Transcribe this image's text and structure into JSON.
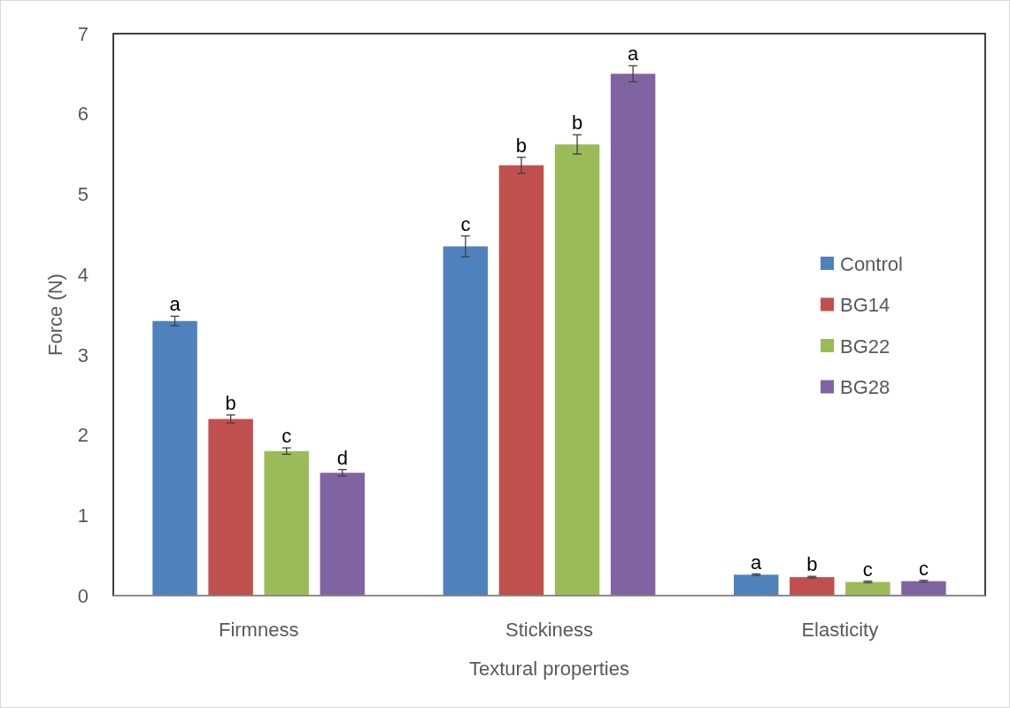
{
  "chart_data": {
    "type": "bar",
    "xlabel": "Textural properties",
    "ylabel": "Force (N)",
    "categories": [
      "Firmness",
      "Stickiness",
      "Elasticity"
    ],
    "ylim": [
      0,
      7
    ],
    "yticks": [
      0,
      1,
      2,
      3,
      4,
      5,
      6,
      7
    ],
    "grid": false,
    "legend": "right",
    "series": [
      {
        "name": "Control",
        "color": "#4f81bd",
        "values": [
          3.42,
          4.35,
          0.26
        ],
        "errors": [
          0.06,
          0.13,
          0.01
        ],
        "value_labels": [
          "a",
          "c",
          "a"
        ]
      },
      {
        "name": "BG14",
        "color": "#c0504d",
        "values": [
          2.2,
          5.36,
          0.23
        ],
        "errors": [
          0.05,
          0.1,
          0.01
        ],
        "value_labels": [
          "b",
          "b",
          "b"
        ]
      },
      {
        "name": "BG22",
        "color": "#9bbb59",
        "values": [
          1.8,
          5.62,
          0.17
        ],
        "errors": [
          0.04,
          0.12,
          0.01
        ],
        "value_labels": [
          "c",
          "b",
          "c"
        ]
      },
      {
        "name": "BG28",
        "color": "#8064a2",
        "values": [
          1.53,
          6.5,
          0.18
        ],
        "errors": [
          0.04,
          0.1,
          0.01
        ],
        "value_labels": [
          "d",
          "a",
          "c"
        ]
      }
    ]
  }
}
